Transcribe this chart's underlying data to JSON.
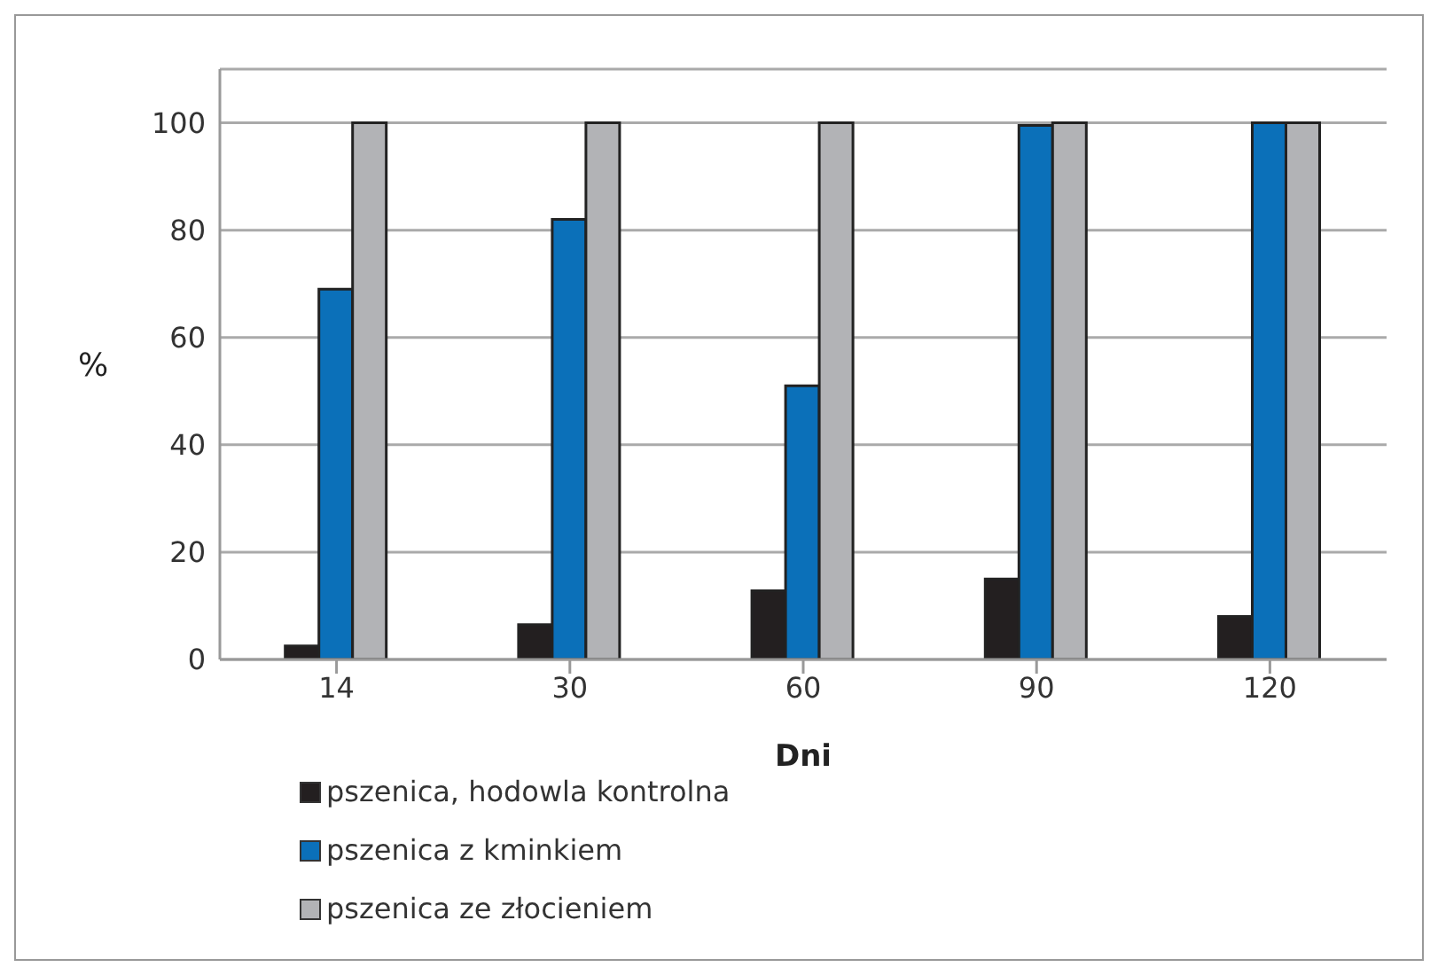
{
  "chart_data": {
    "type": "bar",
    "xlabel": "Dni",
    "ylabel": "%",
    "categories": [
      "14",
      "30",
      "60",
      "90",
      "120"
    ],
    "series": [
      {
        "name": "pszenica, hodowla kontrolna",
        "color": "#231f20",
        "values": [
          2.5,
          6.5,
          12.8,
          15,
          8
        ]
      },
      {
        "name": "pszenica z kminkiem",
        "color": "#0b70b9",
        "values": [
          69,
          82,
          51,
          99.5,
          100
        ]
      },
      {
        "name": "pszenica ze złocieniem",
        "color": "#b2b3b6",
        "values": [
          100,
          100,
          100,
          100,
          100
        ]
      }
    ],
    "ylim": [
      0,
      110
    ],
    "yticks": [
      0,
      20,
      40,
      60,
      80,
      100
    ],
    "grid": "y",
    "legend": "bottom"
  }
}
